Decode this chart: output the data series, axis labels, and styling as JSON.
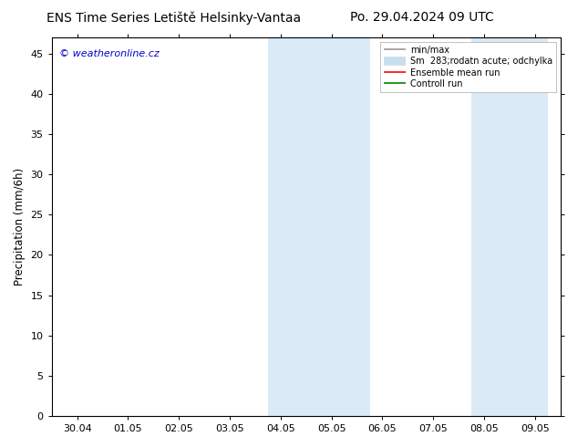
{
  "title_left": "ENS Time Series Letiště Helsinky-Vantaa",
  "title_right": "Po. 29.04.2024 09 UTC",
  "ylabel": "Precipitation (mm/6h)",
  "watermark": "© weatheronline.cz",
  "watermark_color": "#0000cc",
  "x_tick_labels": [
    "30.04",
    "01.05",
    "02.05",
    "03.05",
    "04.05",
    "05.05",
    "06.05",
    "07.05",
    "08.05",
    "09.05"
  ],
  "x_tick_positions": [
    0,
    1,
    2,
    3,
    4,
    5,
    6,
    7,
    8,
    9
  ],
  "xlim": [
    -0.5,
    9.5
  ],
  "ylim": [
    0,
    47
  ],
  "yticks": [
    0,
    5,
    10,
    15,
    20,
    25,
    30,
    35,
    40,
    45
  ],
  "shaded_regions": [
    {
      "xmin": 3.75,
      "xmax": 4.75,
      "color": "#daeaf6"
    },
    {
      "xmin": 4.75,
      "xmax": 5.75,
      "color": "#daeaf6"
    },
    {
      "xmin": 7.75,
      "xmax": 8.5,
      "color": "#daeaf6"
    },
    {
      "xmin": 8.5,
      "xmax": 9.25,
      "color": "#daeaf6"
    }
  ],
  "legend_entries": [
    {
      "label": "min/max",
      "color": "#999999",
      "lw": 1.2,
      "type": "line"
    },
    {
      "label": "Sm  283;rodatn acute; odchylka",
      "color": "#c8dff0",
      "lw": 7,
      "type": "line"
    },
    {
      "label": "Ensemble mean run",
      "color": "#ff0000",
      "lw": 1.2,
      "type": "line"
    },
    {
      "label": "Controll run",
      "color": "#008800",
      "lw": 1.2,
      "type": "line"
    }
  ],
  "background_color": "#ffffff",
  "plot_bg_color": "#ffffff",
  "border_color": "#000000",
  "title_fontsize": 10,
  "tick_fontsize": 8,
  "ylabel_fontsize": 8.5,
  "watermark_fontsize": 8,
  "legend_fontsize": 7
}
